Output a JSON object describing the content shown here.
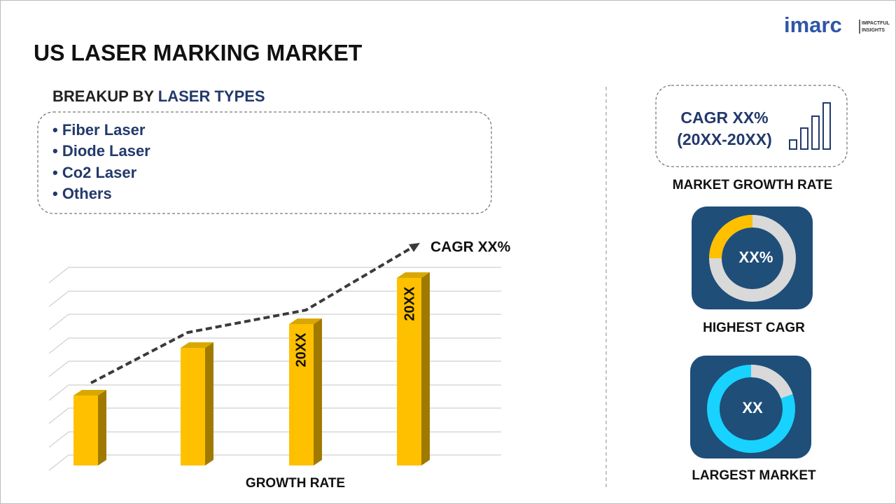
{
  "logo": {
    "name": "imarc",
    "tagline": [
      "IMPACTFUL",
      "INSIGHTS"
    ]
  },
  "header": {
    "title": "US LASER MARKING MARKET"
  },
  "breakup": {
    "heading_prefix": "BREAKUP BY",
    "heading_highlight": "LASER TYPES",
    "items": [
      "• Fiber Laser",
      "• Diode Laser",
      "• Co2 Laser",
      "• Others"
    ]
  },
  "growth_chart": {
    "trend_label": "CAGR XX%",
    "bar_labels": [
      "20XX",
      "20XX"
    ],
    "axis_label": "GROWTH RATE"
  },
  "panels": {
    "market_growth": {
      "line1": "CAGR XX%",
      "line2": "(20XX-20XX)",
      "caption": "MARKET GROWTH RATE"
    },
    "highest_cagr": {
      "center": "XX%",
      "caption": "HIGHEST CAGR"
    },
    "largest_market": {
      "center": "XX",
      "caption": "LARGEST MARKET"
    }
  }
}
